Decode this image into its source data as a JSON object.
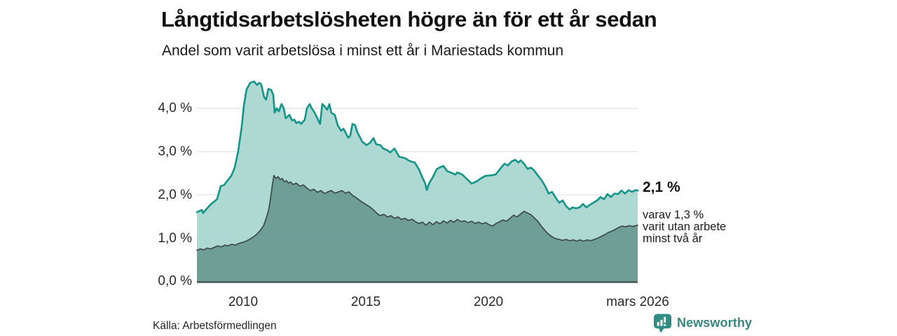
{
  "chart_data": {
    "type": "area",
    "title": "Långtidsarbetslösheten högre än för ett år sedan",
    "subtitle": "Andel som varit arbetslösa i minst ett år i Mariestads kommun",
    "source": "Källa: Arbetsförmedlingen",
    "brand": "Newsworthy",
    "grid": "horizontal",
    "legend": "none",
    "x_axis": {
      "ticks": [
        {
          "label": "2010",
          "t": 2010
        },
        {
          "label": "2015",
          "t": 2015
        },
        {
          "label": "2020",
          "t": 2020
        },
        {
          "label": "mars 2026",
          "t": 2026.1
        }
      ],
      "range": [
        2008.09,
        2026.06
      ]
    },
    "y_axis": {
      "tick_labels": [
        "4,0 %",
        "3,0 %",
        "2,0 %",
        "1,0 %",
        "0,0 %"
      ],
      "tick_values": [
        4,
        3,
        2,
        1,
        0
      ],
      "unit": "%",
      "range": [
        0,
        4.75
      ]
    },
    "annotations": {
      "value_label": "2,1 %",
      "sub_lines": [
        "varav 1,3 %",
        "varit utan arbete",
        "minst två år"
      ]
    },
    "colors": {
      "grid": "#e2e3e8",
      "baseline": "#445450",
      "accent": "#149488"
    },
    "series": [
      {
        "name": "Arbetslösa minst ett år",
        "stroke": "#149488",
        "fill": "#a0d2cb",
        "end_value": 2.1,
        "points": [
          [
            2008.09,
            1.6
          ],
          [
            2008.29,
            1.65
          ],
          [
            2008.34,
            1.58
          ],
          [
            2008.63,
            1.77
          ],
          [
            2008.91,
            1.9
          ],
          [
            2009.06,
            2.2
          ],
          [
            2009.2,
            2.23
          ],
          [
            2009.29,
            2.3
          ],
          [
            2009.49,
            2.44
          ],
          [
            2009.63,
            2.63
          ],
          [
            2009.77,
            3.0
          ],
          [
            2009.91,
            3.55
          ],
          [
            2010.0,
            4.05
          ],
          [
            2010.11,
            4.43
          ],
          [
            2010.26,
            4.59
          ],
          [
            2010.43,
            4.62
          ],
          [
            2010.54,
            4.54
          ],
          [
            2010.63,
            4.59
          ],
          [
            2010.71,
            4.56
          ],
          [
            2010.83,
            4.26
          ],
          [
            2010.91,
            4.2
          ],
          [
            2011.0,
            4.45
          ],
          [
            2011.11,
            4.43
          ],
          [
            2011.2,
            4.32
          ],
          [
            2011.26,
            3.9
          ],
          [
            2011.34,
            4.0
          ],
          [
            2011.43,
            3.93
          ],
          [
            2011.54,
            4.1
          ],
          [
            2011.63,
            4.0
          ],
          [
            2011.71,
            3.77
          ],
          [
            2011.86,
            3.85
          ],
          [
            2011.97,
            3.72
          ],
          [
            2012.06,
            3.74
          ],
          [
            2012.14,
            3.66
          ],
          [
            2012.26,
            3.69
          ],
          [
            2012.34,
            3.64
          ],
          [
            2012.49,
            3.74
          ],
          [
            2012.57,
            4.0
          ],
          [
            2012.69,
            4.1
          ],
          [
            2012.77,
            4.0
          ],
          [
            2012.86,
            3.93
          ],
          [
            2013.0,
            3.77
          ],
          [
            2013.11,
            3.64
          ],
          [
            2013.2,
            4.1
          ],
          [
            2013.29,
            4.05
          ],
          [
            2013.4,
            3.97
          ],
          [
            2013.49,
            4.1
          ],
          [
            2013.57,
            3.9
          ],
          [
            2013.71,
            3.85
          ],
          [
            2013.83,
            3.61
          ],
          [
            2013.97,
            3.48
          ],
          [
            2014.06,
            3.53
          ],
          [
            2014.14,
            3.45
          ],
          [
            2014.26,
            3.32
          ],
          [
            2014.34,
            3.37
          ],
          [
            2014.43,
            3.64
          ],
          [
            2014.54,
            3.61
          ],
          [
            2014.63,
            3.45
          ],
          [
            2014.83,
            3.23
          ],
          [
            2015.0,
            3.15
          ],
          [
            2015.14,
            3.2
          ],
          [
            2015.29,
            3.31
          ],
          [
            2015.4,
            3.17
          ],
          [
            2015.57,
            3.15
          ],
          [
            2015.69,
            3.07
          ],
          [
            2015.83,
            3.04
          ],
          [
            2015.97,
            2.98
          ],
          [
            2016.14,
            3.07
          ],
          [
            2016.34,
            2.88
          ],
          [
            2016.57,
            2.85
          ],
          [
            2016.77,
            2.78
          ],
          [
            2016.97,
            2.75
          ],
          [
            2017.14,
            2.59
          ],
          [
            2017.29,
            2.39
          ],
          [
            2017.4,
            2.26
          ],
          [
            2017.46,
            2.11
          ],
          [
            2017.57,
            2.28
          ],
          [
            2017.69,
            2.39
          ],
          [
            2017.86,
            2.59
          ],
          [
            2017.97,
            2.63
          ],
          [
            2018.14,
            2.67
          ],
          [
            2018.29,
            2.55
          ],
          [
            2018.43,
            2.52
          ],
          [
            2018.63,
            2.47
          ],
          [
            2018.71,
            2.52
          ],
          [
            2018.91,
            2.47
          ],
          [
            2019.11,
            2.36
          ],
          [
            2019.29,
            2.26
          ],
          [
            2019.49,
            2.31
          ],
          [
            2019.69,
            2.39
          ],
          [
            2019.86,
            2.44
          ],
          [
            2020.06,
            2.45
          ],
          [
            2020.26,
            2.47
          ],
          [
            2020.34,
            2.52
          ],
          [
            2020.49,
            2.63
          ],
          [
            2020.63,
            2.72
          ],
          [
            2020.77,
            2.68
          ],
          [
            2020.91,
            2.77
          ],
          [
            2021.06,
            2.81
          ],
          [
            2021.2,
            2.75
          ],
          [
            2021.29,
            2.8
          ],
          [
            2021.43,
            2.72
          ],
          [
            2021.57,
            2.6
          ],
          [
            2021.71,
            2.63
          ],
          [
            2021.86,
            2.55
          ],
          [
            2022.0,
            2.44
          ],
          [
            2022.14,
            2.34
          ],
          [
            2022.29,
            2.2
          ],
          [
            2022.43,
            2.03
          ],
          [
            2022.57,
            2.07
          ],
          [
            2022.71,
            1.94
          ],
          [
            2022.86,
            1.82
          ],
          [
            2023.0,
            1.87
          ],
          [
            2023.14,
            1.74
          ],
          [
            2023.29,
            1.66
          ],
          [
            2023.4,
            1.71
          ],
          [
            2023.54,
            1.69
          ],
          [
            2023.69,
            1.71
          ],
          [
            2023.83,
            1.79
          ],
          [
            2023.97,
            1.71
          ],
          [
            2024.11,
            1.77
          ],
          [
            2024.26,
            1.82
          ],
          [
            2024.4,
            1.87
          ],
          [
            2024.54,
            1.95
          ],
          [
            2024.69,
            1.9
          ],
          [
            2024.83,
            2.02
          ],
          [
            2024.97,
            1.95
          ],
          [
            2025.11,
            2.03
          ],
          [
            2025.26,
            2.02
          ],
          [
            2025.4,
            2.1
          ],
          [
            2025.54,
            2.03
          ],
          [
            2025.69,
            2.11
          ],
          [
            2025.83,
            2.07
          ],
          [
            2025.97,
            2.11
          ],
          [
            2026.06,
            2.1
          ]
        ]
      },
      {
        "name": "Utan arbete minst två år",
        "stroke": "#3d4a47",
        "fill": "#6a9992",
        "end_value": 1.3,
        "points": [
          [
            2008.09,
            0.72
          ],
          [
            2008.23,
            0.75
          ],
          [
            2008.37,
            0.73
          ],
          [
            2008.51,
            0.77
          ],
          [
            2008.66,
            0.75
          ],
          [
            2008.8,
            0.79
          ],
          [
            2008.94,
            0.82
          ],
          [
            2009.09,
            0.8
          ],
          [
            2009.23,
            0.84
          ],
          [
            2009.37,
            0.82
          ],
          [
            2009.51,
            0.86
          ],
          [
            2009.66,
            0.84
          ],
          [
            2009.8,
            0.88
          ],
          [
            2009.94,
            0.9
          ],
          [
            2010.09,
            0.93
          ],
          [
            2010.23,
            0.97
          ],
          [
            2010.37,
            1.02
          ],
          [
            2010.51,
            1.08
          ],
          [
            2010.66,
            1.17
          ],
          [
            2010.8,
            1.28
          ],
          [
            2010.91,
            1.45
          ],
          [
            2011.0,
            1.63
          ],
          [
            2011.06,
            1.8
          ],
          [
            2011.11,
            2.0
          ],
          [
            2011.17,
            2.25
          ],
          [
            2011.23,
            2.45
          ],
          [
            2011.31,
            2.38
          ],
          [
            2011.4,
            2.42
          ],
          [
            2011.49,
            2.35
          ],
          [
            2011.57,
            2.38
          ],
          [
            2011.66,
            2.3
          ],
          [
            2011.74,
            2.33
          ],
          [
            2011.83,
            2.27
          ],
          [
            2011.91,
            2.3
          ],
          [
            2012.0,
            2.24
          ],
          [
            2012.14,
            2.27
          ],
          [
            2012.29,
            2.2
          ],
          [
            2012.43,
            2.23
          ],
          [
            2012.57,
            2.16
          ],
          [
            2012.71,
            2.1
          ],
          [
            2012.86,
            2.13
          ],
          [
            2013.0,
            2.06
          ],
          [
            2013.14,
            2.1
          ],
          [
            2013.29,
            2.03
          ],
          [
            2013.43,
            2.07
          ],
          [
            2013.57,
            2.1
          ],
          [
            2013.71,
            2.04
          ],
          [
            2013.86,
            2.07
          ],
          [
            2014.0,
            2.1
          ],
          [
            2014.14,
            2.04
          ],
          [
            2014.29,
            2.07
          ],
          [
            2014.43,
            1.99
          ],
          [
            2014.57,
            1.94
          ],
          [
            2014.71,
            1.88
          ],
          [
            2014.86,
            1.82
          ],
          [
            2015.0,
            1.77
          ],
          [
            2015.14,
            1.72
          ],
          [
            2015.29,
            1.65
          ],
          [
            2015.43,
            1.57
          ],
          [
            2015.57,
            1.52
          ],
          [
            2015.71,
            1.55
          ],
          [
            2015.86,
            1.49
          ],
          [
            2016.0,
            1.52
          ],
          [
            2016.14,
            1.46
          ],
          [
            2016.29,
            1.49
          ],
          [
            2016.43,
            1.43
          ],
          [
            2016.57,
            1.46
          ],
          [
            2016.71,
            1.41
          ],
          [
            2016.86,
            1.44
          ],
          [
            2017.0,
            1.38
          ],
          [
            2017.14,
            1.34
          ],
          [
            2017.29,
            1.37
          ],
          [
            2017.43,
            1.3
          ],
          [
            2017.57,
            1.37
          ],
          [
            2017.71,
            1.31
          ],
          [
            2017.86,
            1.38
          ],
          [
            2018.0,
            1.33
          ],
          [
            2018.14,
            1.4
          ],
          [
            2018.29,
            1.35
          ],
          [
            2018.43,
            1.41
          ],
          [
            2018.57,
            1.37
          ],
          [
            2018.71,
            1.43
          ],
          [
            2018.86,
            1.38
          ],
          [
            2019.0,
            1.4
          ],
          [
            2019.14,
            1.36
          ],
          [
            2019.29,
            1.39
          ],
          [
            2019.43,
            1.34
          ],
          [
            2019.57,
            1.37
          ],
          [
            2019.71,
            1.33
          ],
          [
            2019.86,
            1.36
          ],
          [
            2020.0,
            1.31
          ],
          [
            2020.14,
            1.28
          ],
          [
            2020.29,
            1.34
          ],
          [
            2020.43,
            1.38
          ],
          [
            2020.57,
            1.42
          ],
          [
            2020.71,
            1.39
          ],
          [
            2020.86,
            1.46
          ],
          [
            2021.0,
            1.53
          ],
          [
            2021.14,
            1.49
          ],
          [
            2021.29,
            1.56
          ],
          [
            2021.43,
            1.62
          ],
          [
            2021.57,
            1.58
          ],
          [
            2021.71,
            1.54
          ],
          [
            2021.86,
            1.46
          ],
          [
            2022.0,
            1.38
          ],
          [
            2022.14,
            1.27
          ],
          [
            2022.29,
            1.17
          ],
          [
            2022.43,
            1.09
          ],
          [
            2022.57,
            1.03
          ],
          [
            2022.71,
            0.99
          ],
          [
            2022.86,
            0.97
          ],
          [
            2023.0,
            0.95
          ],
          [
            2023.14,
            0.97
          ],
          [
            2023.29,
            0.94
          ],
          [
            2023.43,
            0.96
          ],
          [
            2023.57,
            0.93
          ],
          [
            2023.71,
            0.96
          ],
          [
            2023.86,
            0.93
          ],
          [
            2024.0,
            0.96
          ],
          [
            2024.14,
            0.94
          ],
          [
            2024.29,
            0.97
          ],
          [
            2024.43,
            1.0
          ],
          [
            2024.57,
            1.04
          ],
          [
            2024.71,
            1.08
          ],
          [
            2024.86,
            1.13
          ],
          [
            2025.0,
            1.16
          ],
          [
            2025.14,
            1.2
          ],
          [
            2025.29,
            1.25
          ],
          [
            2025.43,
            1.28
          ],
          [
            2025.57,
            1.26
          ],
          [
            2025.71,
            1.29
          ],
          [
            2025.86,
            1.27
          ],
          [
            2026.0,
            1.29
          ],
          [
            2026.06,
            1.3
          ]
        ]
      }
    ]
  }
}
